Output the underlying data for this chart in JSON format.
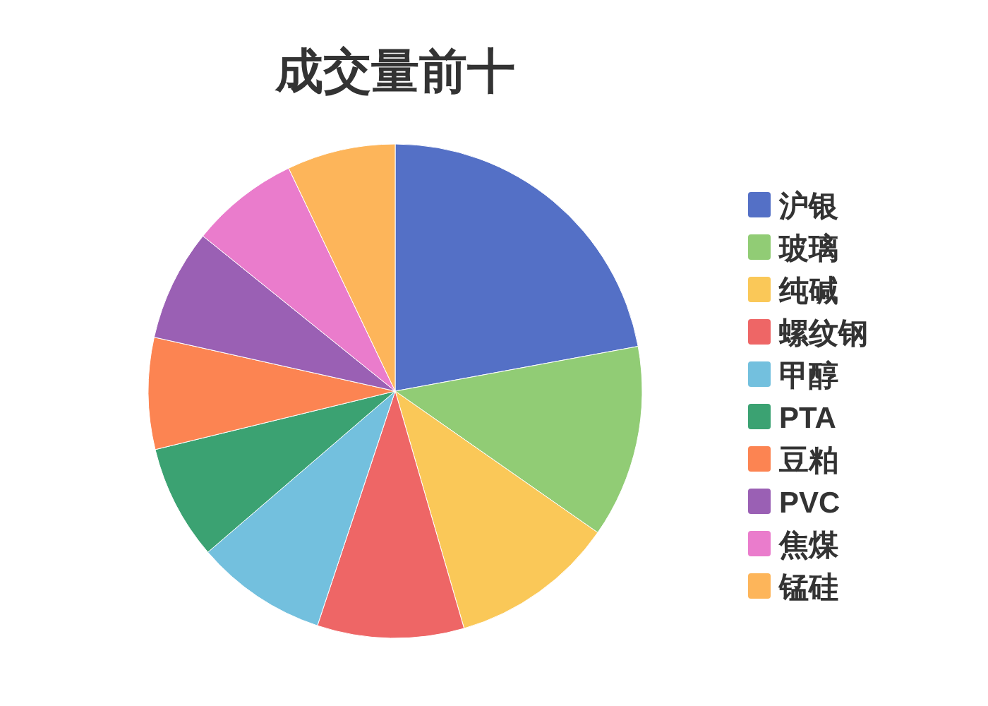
{
  "chart_data": {
    "type": "pie",
    "title": "成交量前十",
    "categories": [
      "沪银",
      "玻璃",
      "纯碱",
      "螺纹钢",
      "甲醇",
      "PTA",
      "豆粕",
      "PVC",
      "焦煤",
      "锰硅"
    ],
    "values": [
      22.1,
      12.6,
      10.8,
      9.6,
      8.6,
      7.5,
      7.3,
      7.3,
      7.1,
      7.1
    ],
    "colors": [
      "#5470c6",
      "#91cc75",
      "#fac858",
      "#ee6666",
      "#73c0de",
      "#3ba272",
      "#fc8452",
      "#9a60b4",
      "#ea7ccc",
      "#fdb55a"
    ],
    "legend": "right"
  }
}
